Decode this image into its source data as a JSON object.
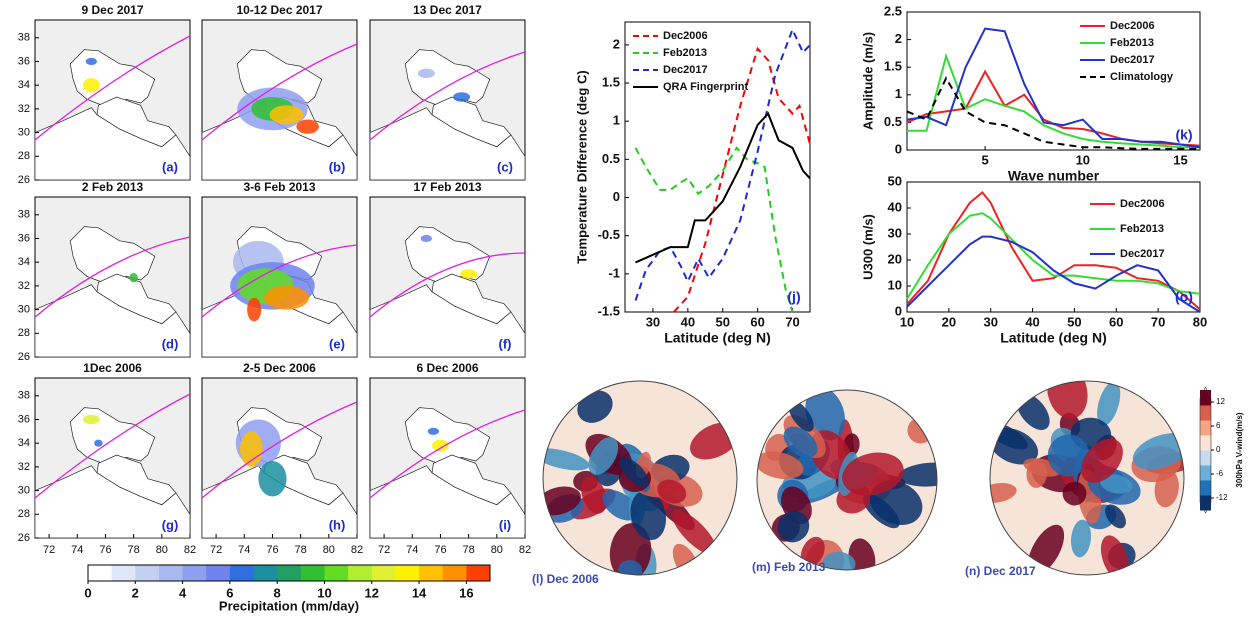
{
  "chart_data": [
    {
      "type": "map",
      "panels": [
        {
          "title": "9 Dec 2017",
          "label": "(a)"
        },
        {
          "title": "10-12 Dec 2017",
          "label": "(b)"
        },
        {
          "title": "13 Dec 2017",
          "label": "(c)"
        },
        {
          "title": "2 Feb 2013",
          "label": "(d)"
        },
        {
          "title": "3-6 Feb 2013",
          "label": "(e)"
        },
        {
          "title": "17 Feb 2013",
          "label": "(f)"
        },
        {
          "title": "1Dec 2006",
          "label": "(g)"
        },
        {
          "title": "2-5 Dec 2006",
          "label": "(h)"
        },
        {
          "title": "6 Dec 2006",
          "label": "(i)"
        }
      ],
      "xlim": [
        71,
        82
      ],
      "ylim": [
        26,
        39.5
      ],
      "xticks": [
        72,
        74,
        76,
        78,
        80,
        82
      ],
      "yticks": [
        26,
        28,
        30,
        32,
        34,
        36,
        38
      ]
    },
    {
      "type": "colorbar",
      "label": "Precipitation (mm/day)",
      "xlim": [
        0,
        17
      ],
      "xticks": [
        0,
        2,
        4,
        6,
        8,
        10,
        12,
        14,
        16
      ],
      "colors": [
        "#ffffff",
        "#dfe6f7",
        "#c3d0f2",
        "#a9b8ee",
        "#8f9ff0",
        "#6f82ee",
        "#2f6fe0",
        "#1a8fa0",
        "#20a060",
        "#30c030",
        "#60dd20",
        "#b0ee30",
        "#e0f030",
        "#fff000",
        "#ffc000",
        "#ff9000",
        "#ff4000"
      ]
    },
    {
      "type": "line",
      "label": "(j)",
      "xlabel": "Latitude (deg N)",
      "ylabel": "Temperature Difference (deg C)",
      "xlim": [
        22,
        75
      ],
      "ylim": [
        -1.5,
        2.3
      ],
      "xticks": [
        30,
        40,
        50,
        60,
        70
      ],
      "yticks": [
        -1.5,
        -1,
        -0.5,
        0,
        0.5,
        1,
        1.5,
        2
      ],
      "legend": "upper left",
      "series": [
        {
          "name": "Dec2006",
          "color": "#ff0000",
          "dash": true,
          "x": [
            36,
            40,
            45,
            50,
            55,
            60,
            63,
            66,
            70,
            72,
            75
          ],
          "values": [
            -1.5,
            -1.3,
            -0.6,
            0.3,
            1.2,
            1.95,
            1.8,
            1.3,
            1.1,
            1.2,
            0.7
          ]
        },
        {
          "name": "Feb2013",
          "color": "#22cc22",
          "dash": true,
          "x": [
            25,
            28,
            32,
            35,
            38,
            40,
            43,
            46,
            50,
            54,
            57,
            60,
            62,
            65,
            68,
            70
          ],
          "values": [
            0.65,
            0.4,
            0.1,
            0.1,
            0.2,
            0.25,
            0.05,
            0.15,
            0.35,
            0.65,
            0.5,
            0.45,
            0.4,
            -0.5,
            -1.2,
            -1.5
          ]
        },
        {
          "name": "Dec2017",
          "color": "#1a2ad0",
          "dash": true,
          "x": [
            25,
            28,
            32,
            35,
            38,
            40,
            43,
            46,
            50,
            55,
            60,
            65,
            70,
            73,
            75
          ],
          "values": [
            -1.35,
            -0.95,
            -0.7,
            -0.65,
            -0.9,
            -1.1,
            -0.8,
            -1.05,
            -0.8,
            -0.3,
            0.6,
            1.6,
            2.2,
            1.9,
            2.0
          ]
        },
        {
          "name": "QRA Fingerprint",
          "color": "#000000",
          "dash": false,
          "x": [
            25,
            30,
            35,
            40,
            42,
            45,
            50,
            55,
            60,
            63,
            66,
            70,
            73,
            75
          ],
          "values": [
            -0.85,
            -0.75,
            -0.65,
            -0.65,
            -0.3,
            -0.3,
            -0.05,
            0.4,
            0.95,
            1.1,
            0.75,
            0.65,
            0.35,
            0.25
          ]
        }
      ]
    },
    {
      "type": "line",
      "label": "(k)",
      "xlabel": "Wave number",
      "ylabel": "Amplitude (m/s)",
      "xlim": [
        1,
        16
      ],
      "ylim": [
        0,
        2.5
      ],
      "xticks": [
        5,
        10,
        15
      ],
      "yticks": [
        0,
        0.5,
        1,
        1.5,
        2,
        2.5
      ],
      "legend": "upper right",
      "series": [
        {
          "name": "Dec2006",
          "color": "#ee2222",
          "dash": false,
          "x": [
            1,
            2,
            3,
            4,
            5,
            6,
            7,
            8,
            9,
            10,
            11,
            12,
            13,
            14,
            15,
            16
          ],
          "values": [
            0.5,
            0.65,
            0.7,
            0.75,
            1.42,
            0.8,
            1.0,
            0.55,
            0.4,
            0.38,
            0.3,
            0.2,
            0.15,
            0.12,
            0.1,
            0.08
          ]
        },
        {
          "name": "Feb2013",
          "color": "#33dd33",
          "dash": false,
          "x": [
            1,
            2,
            3,
            4,
            5,
            6,
            7,
            8,
            9,
            10,
            11,
            12,
            13,
            14,
            15,
            16
          ],
          "values": [
            0.35,
            0.35,
            1.7,
            0.75,
            0.92,
            0.8,
            0.7,
            0.45,
            0.3,
            0.2,
            0.15,
            0.12,
            0.1,
            0.08,
            0.05,
            0.05
          ]
        },
        {
          "name": "Dec2017",
          "color": "#2233cc",
          "dash": false,
          "x": [
            1,
            2,
            3,
            4,
            5,
            6,
            7,
            8,
            9,
            10,
            11,
            12,
            13,
            14,
            15,
            16
          ],
          "values": [
            0.55,
            0.6,
            0.45,
            1.5,
            2.2,
            2.15,
            1.2,
            0.5,
            0.45,
            0.55,
            0.2,
            0.2,
            0.15,
            0.15,
            0.1,
            0.05
          ]
        },
        {
          "name": "Climatology",
          "color": "#000000",
          "dash": true,
          "x": [
            1,
            2,
            3,
            4,
            5,
            6,
            7,
            8,
            9,
            10,
            11,
            12,
            13,
            14,
            15,
            16
          ],
          "values": [
            0.7,
            0.55,
            1.3,
            0.7,
            0.5,
            0.45,
            0.3,
            0.15,
            0.1,
            0.05,
            0.05,
            0.03,
            0.02,
            0.02,
            0.02,
            0.02
          ]
        }
      ]
    },
    {
      "type": "line",
      "label": "(o)",
      "xlabel": "Latitude (deg N)",
      "ylabel": "U300 (m/s)",
      "xlim": [
        10,
        80
      ],
      "ylim": [
        0,
        50
      ],
      "xticks": [
        10,
        20,
        30,
        40,
        50,
        60,
        70,
        80
      ],
      "yticks": [
        0,
        10,
        20,
        30,
        40,
        50
      ],
      "legend": "right",
      "series": [
        {
          "name": "Dec2006",
          "color": "#ee2222",
          "dash": false,
          "x": [
            10,
            15,
            20,
            25,
            28,
            30,
            35,
            40,
            45,
            50,
            55,
            60,
            65,
            70,
            75,
            80
          ],
          "values": [
            3,
            12,
            30,
            42,
            46,
            42,
            25,
            12,
            13,
            18,
            18,
            17,
            13,
            12,
            8,
            1
          ]
        },
        {
          "name": "Feb2013",
          "color": "#33dd33",
          "dash": false,
          "x": [
            10,
            15,
            20,
            25,
            28,
            30,
            35,
            40,
            45,
            50,
            55,
            60,
            65,
            70,
            75,
            80
          ],
          "values": [
            5,
            18,
            30,
            37,
            38,
            36,
            28,
            20,
            14,
            14,
            13,
            12,
            12,
            11,
            8,
            7
          ]
        },
        {
          "name": "Dec2017",
          "color": "#2233cc",
          "dash": false,
          "x": [
            10,
            15,
            20,
            25,
            28,
            30,
            35,
            40,
            45,
            50,
            55,
            60,
            65,
            70,
            75,
            80
          ],
          "values": [
            2,
            10,
            18,
            26,
            29,
            29,
            27,
            23,
            16,
            11,
            9,
            14,
            18,
            16,
            5,
            0
          ]
        }
      ]
    },
    {
      "type": "polar-map",
      "panels": [
        {
          "title": "(l) Dec 2006"
        },
        {
          "title": "(m) Feb 2013"
        },
        {
          "title": "(n) Dec 2017"
        }
      ]
    },
    {
      "type": "colorbar",
      "label": "300hPa V-wind(m/s)",
      "ylim": [
        -15,
        15
      ],
      "yticks": [
        12,
        6,
        0,
        -6,
        -12
      ],
      "colors": [
        "#08306b",
        "#2171b5",
        "#6baed6",
        "#c6dbef",
        "#fbe3d6",
        "#f4a582",
        "#d6604d",
        "#67001f"
      ]
    }
  ]
}
